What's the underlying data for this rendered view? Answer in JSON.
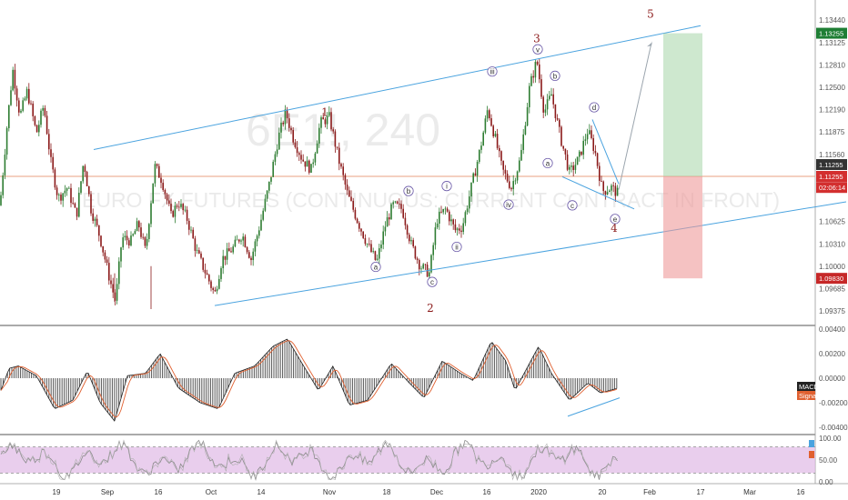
{
  "chart_data": [
    {
      "type": "candlestick",
      "title": "6E1!, 240",
      "subtitle": "EURO FX FUTURES (CONTINUOUS: CURRENT CONTRACT IN FRONT)",
      "y_ticks": [
        "1.13440",
        "1.13125",
        "1.12810",
        "1.12500",
        "1.12190",
        "1.11875",
        "1.11560",
        "1.11255",
        "1.10625",
        "1.10310",
        "1.10000",
        "1.09685",
        "1.09375"
      ],
      "price_tags": [
        {
          "label": "1.13255",
          "color": "#1e7e34"
        },
        {
          "label": "1.11255",
          "color": "#333333"
        },
        {
          "label": "1.11255",
          "color": "#d32f2f"
        },
        {
          "label": "02:06:14",
          "color": "#d32f2f"
        },
        {
          "label": "1.09830",
          "color": "#c62828"
        }
      ],
      "x_ticks": [
        "19",
        "Sep",
        "16",
        "Oct",
        "14",
        "Nov",
        "18",
        "Dec",
        "16",
        "2020",
        "20",
        "Feb",
        "17",
        "Mar",
        "16"
      ],
      "wave_labels": [
        {
          "label": "1",
          "price": 1.1215
        },
        {
          "label": "2",
          "price": 1.0941
        },
        {
          "label": "3",
          "price": 1.1318
        },
        {
          "label": "4",
          "price": 1.1053
        },
        {
          "label": "5",
          "price": 1.1352
        }
      ],
      "sub_wave_labels": [
        {
          "label": "a",
          "price": 1.0999
        },
        {
          "label": "b",
          "price": 1.1105
        },
        {
          "label": "c",
          "price": 1.0978
        },
        {
          "label": "i",
          "price": 1.1112
        },
        {
          "label": "ii",
          "price": 1.1027
        },
        {
          "label": "iii",
          "price": 1.1272
        },
        {
          "label": "iv",
          "price": 1.1086
        },
        {
          "label": "v",
          "price": 1.1303
        },
        {
          "label": "a",
          "price": 1.1144
        },
        {
          "label": "b",
          "price": 1.1266
        },
        {
          "label": "c",
          "price": 1.1085
        },
        {
          "label": "d",
          "price": 1.1222
        },
        {
          "label": "e",
          "price": 1.1066
        }
      ],
      "position": {
        "entry": 1.11255,
        "target": 1.13255,
        "stop": 1.0983
      },
      "horizontal_line": 1.11255
    },
    {
      "type": "line",
      "indicator": "MACD",
      "y_ticks": [
        "0.00400",
        "0.00200",
        "0.00000",
        "-0.00200",
        "-0.00400"
      ],
      "legend": [
        {
          "label": "MACD",
          "color": "#222222"
        },
        {
          "label": "Signal",
          "color": "#e06030"
        }
      ]
    },
    {
      "type": "line",
      "indicator": "Stochastic",
      "y_ticks": [
        "100.00",
        "50.00",
        "0.00"
      ],
      "upper_band": 80,
      "lower_band": 20
    }
  ],
  "colors": {
    "up": "#2e7d32",
    "down": "#8b1a1a",
    "channel": "#4aa3df",
    "horizontal": "#e8a080",
    "profit": "#a5d6a7",
    "loss": "#ef9a9a",
    "stoch_band": "#e1bee7"
  }
}
